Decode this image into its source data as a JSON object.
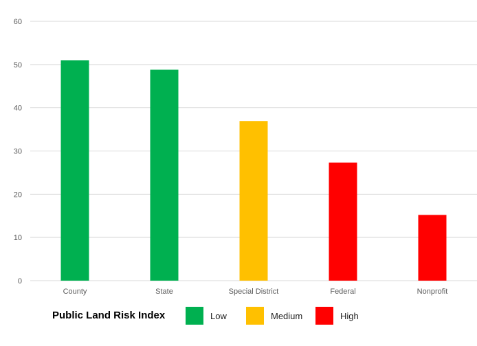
{
  "colors": {
    "low": "#00B050",
    "medium": "#FFC000",
    "high": "#FF0000",
    "grid": "#D9D9D9",
    "axis_text": "#595959"
  },
  "chart_data": {
    "type": "bar",
    "title": "",
    "xlabel": "",
    "ylabel": "",
    "categories": [
      "County",
      "State",
      "Special District",
      "Federal",
      "Nonprofit"
    ],
    "values": [
      51,
      48.8,
      36.9,
      27.3,
      15.2
    ],
    "risk": [
      "Low",
      "Low",
      "Medium",
      "High",
      "High"
    ],
    "ylim": [
      0,
      60
    ],
    "yticks": [
      0,
      10,
      20,
      30,
      40,
      50,
      60
    ],
    "grid": true,
    "legend": {
      "title": "Public Land Risk Index",
      "placement": "bottom",
      "entries": [
        "Low",
        "Medium",
        "High"
      ]
    }
  }
}
